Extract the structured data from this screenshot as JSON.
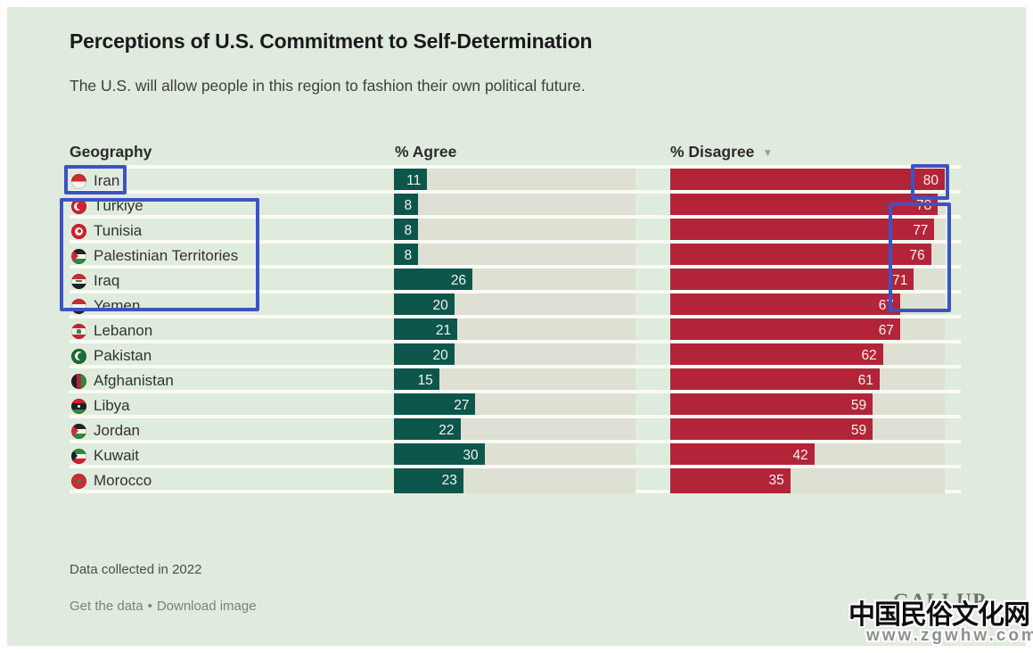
{
  "header": {
    "title": "Perceptions of U.S. Commitment to Self-Determination",
    "subtitle": "The U.S. will allow people in this region to fashion their own political future."
  },
  "columns": {
    "geography": "Geography",
    "agree": "% Agree",
    "disagree": "% Disagree",
    "sort_icon": "▼"
  },
  "chart_data": {
    "type": "bar",
    "orientation": "horizontal",
    "title": "Perceptions of U.S. Commitment to Self-Determination",
    "subtitle": "The U.S. will allow people in this region to fashion their own political future.",
    "categories": [
      "Iran",
      "Türkiye",
      "Tunisia",
      "Palestinian Territories",
      "Iraq",
      "Yemen",
      "Lebanon",
      "Pakistan",
      "Afghanistan",
      "Libya",
      "Jordan",
      "Kuwait",
      "Morocco"
    ],
    "series": [
      {
        "name": "% Agree",
        "color": "#0d564c",
        "values": [
          11,
          8,
          8,
          8,
          26,
          20,
          21,
          20,
          15,
          27,
          22,
          30,
          23
        ]
      },
      {
        "name": "% Disagree",
        "color": "#b32438",
        "values": [
          80,
          78,
          77,
          76,
          71,
          67,
          67,
          62,
          61,
          59,
          59,
          42,
          35
        ]
      }
    ],
    "xlim": [
      0,
      80
    ],
    "value_labels": "inside-end",
    "grid": "off",
    "legend_position": "column-headers",
    "sorted_by": "% Disagree descending",
    "note": "Data collected in 2022",
    "source": "GALLUP",
    "highlight_annotation_color": "#3d53c4",
    "track_color": "#dee0d4",
    "background_color": "#dfebdd"
  },
  "rows": [
    {
      "country": "Iran",
      "flag": "iran",
      "agree": 11,
      "disagree": 80
    },
    {
      "country": "Türkiye",
      "flag": "turkiye",
      "agree": 8,
      "disagree": 78
    },
    {
      "country": "Tunisia",
      "flag": "tunisia",
      "agree": 8,
      "disagree": 77
    },
    {
      "country": "Palestinian Territories",
      "flag": "palestine",
      "agree": 8,
      "disagree": 76
    },
    {
      "country": "Iraq",
      "flag": "iraq",
      "agree": 26,
      "disagree": 71
    },
    {
      "country": "Yemen",
      "flag": "yemen",
      "agree": 20,
      "disagree": 67
    },
    {
      "country": "Lebanon",
      "flag": "lebanon",
      "agree": 21,
      "disagree": 67
    },
    {
      "country": "Pakistan",
      "flag": "pakistan",
      "agree": 20,
      "disagree": 62
    },
    {
      "country": "Afghanistan",
      "flag": "afghanistan",
      "agree": 15,
      "disagree": 61
    },
    {
      "country": "Libya",
      "flag": "libya",
      "agree": 27,
      "disagree": 59
    },
    {
      "country": "Jordan",
      "flag": "jordan",
      "agree": 22,
      "disagree": 59
    },
    {
      "country": "Kuwait",
      "flag": "kuwait",
      "agree": 30,
      "disagree": 42
    },
    {
      "country": "Morocco",
      "flag": "morocco",
      "agree": 23,
      "disagree": 35
    }
  ],
  "footer": {
    "note": "Data collected in 2022",
    "link1": "Get the data",
    "separator": "•",
    "link2": "Download image",
    "brand": "GALLUP"
  },
  "watermark": {
    "title": "中国民俗文化网",
    "url": "www.zgwhw.com"
  }
}
